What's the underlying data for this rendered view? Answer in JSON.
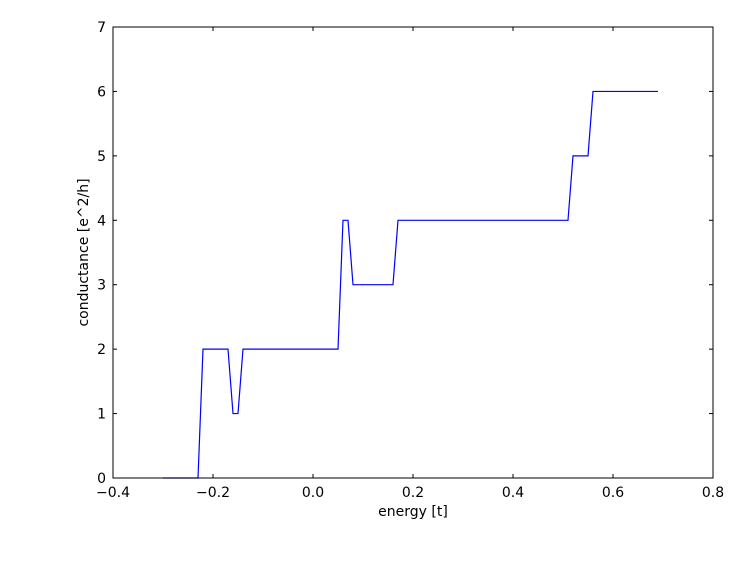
{
  "chart_data": {
    "type": "line",
    "title": "",
    "xlabel": "energy [t]",
    "ylabel": "conductance [e^2/h]",
    "xlim": [
      -0.4,
      0.8
    ],
    "ylim": [
      0,
      7
    ],
    "xticks": [
      -0.4,
      -0.2,
      0.0,
      0.2,
      0.4,
      0.6,
      0.8
    ],
    "xtick_labels": [
      "−0.4",
      "−0.2",
      "0.0",
      "0.2",
      "0.4",
      "0.6",
      "0.8"
    ],
    "yticks": [
      0,
      1,
      2,
      3,
      4,
      5,
      6,
      7
    ],
    "ytick_labels": [
      "0",
      "1",
      "2",
      "3",
      "4",
      "5",
      "6",
      "7"
    ],
    "grid": false,
    "legend": "none",
    "series": [
      {
        "color": "#0000ff",
        "x": [
          -0.3,
          -0.23,
          -0.22,
          -0.17,
          -0.16,
          -0.15,
          -0.14,
          0.05,
          0.06,
          0.07,
          0.08,
          0.16,
          0.17,
          0.51,
          0.52,
          0.55,
          0.56,
          0.69
        ],
        "y": [
          0,
          0,
          2,
          2,
          1,
          1,
          2,
          2,
          4,
          4,
          3,
          3,
          4,
          4,
          5,
          5,
          6,
          6
        ]
      }
    ]
  }
}
